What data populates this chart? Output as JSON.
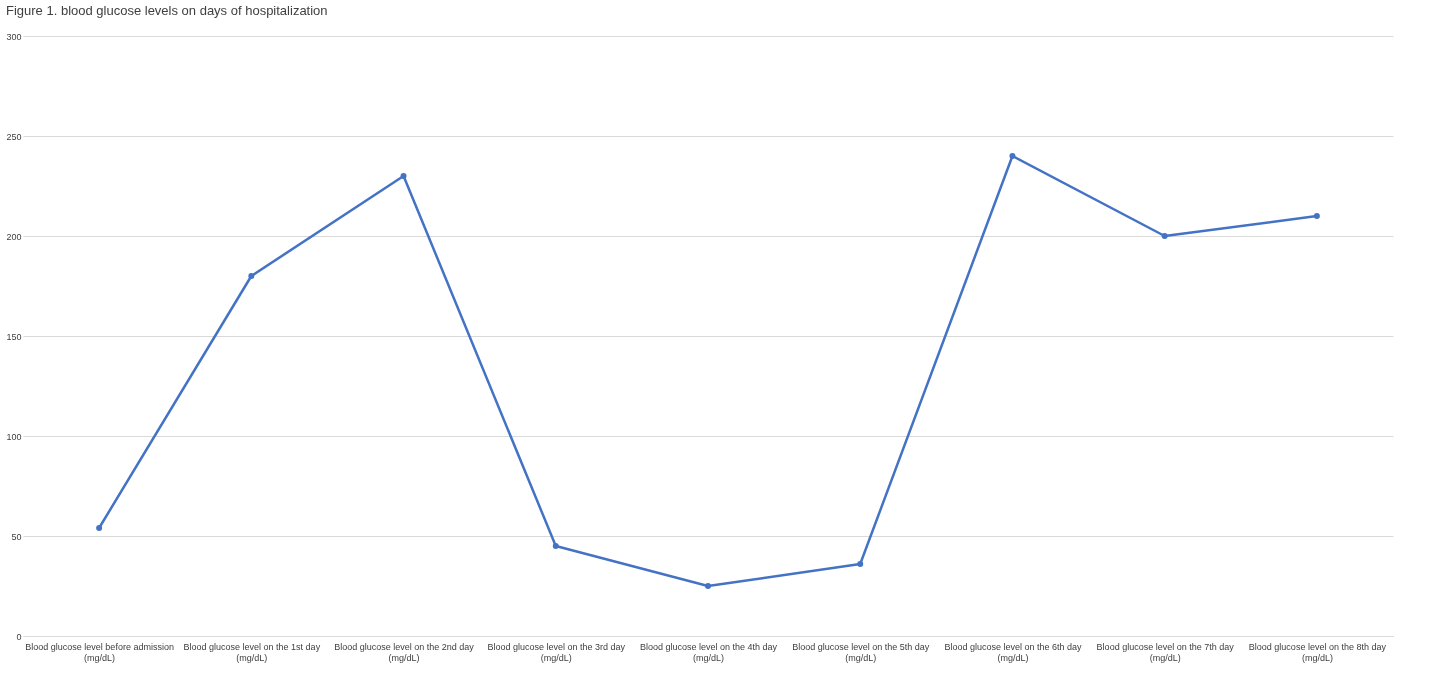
{
  "chart_data": {
    "type": "line",
    "title": "Figure 1. blood glucose levels on days of hospitalization",
    "categories": [
      "Blood glucose level before admission (mg/dL)",
      "Blood glucose level on the 1st day (mg/dL)",
      "Blood glucose level on the 2nd day (mg/dL)",
      "Blood glucose level on the 3rd day (mg/dL)",
      "Blood glucose level on the 4th day (mg/dL)",
      "Blood glucose level on the 5th day (mg/dL)",
      "Blood glucose level on the 6th day (mg/dL)",
      "Blood glucose level on the 7th day (mg/dL)",
      "Blood glucose level on the 8th day (mg/dL)"
    ],
    "series": [
      {
        "color": "#4472c4",
        "values": [
          54,
          180,
          230,
          45,
          25,
          36,
          240,
          200,
          210
        ]
      }
    ],
    "ylim": [
      0,
      300
    ],
    "yticks": [
      0,
      50,
      100,
      150,
      200,
      250,
      300
    ],
    "grid": "y",
    "marker": "circle",
    "line_style": "solid",
    "legend": false
  }
}
